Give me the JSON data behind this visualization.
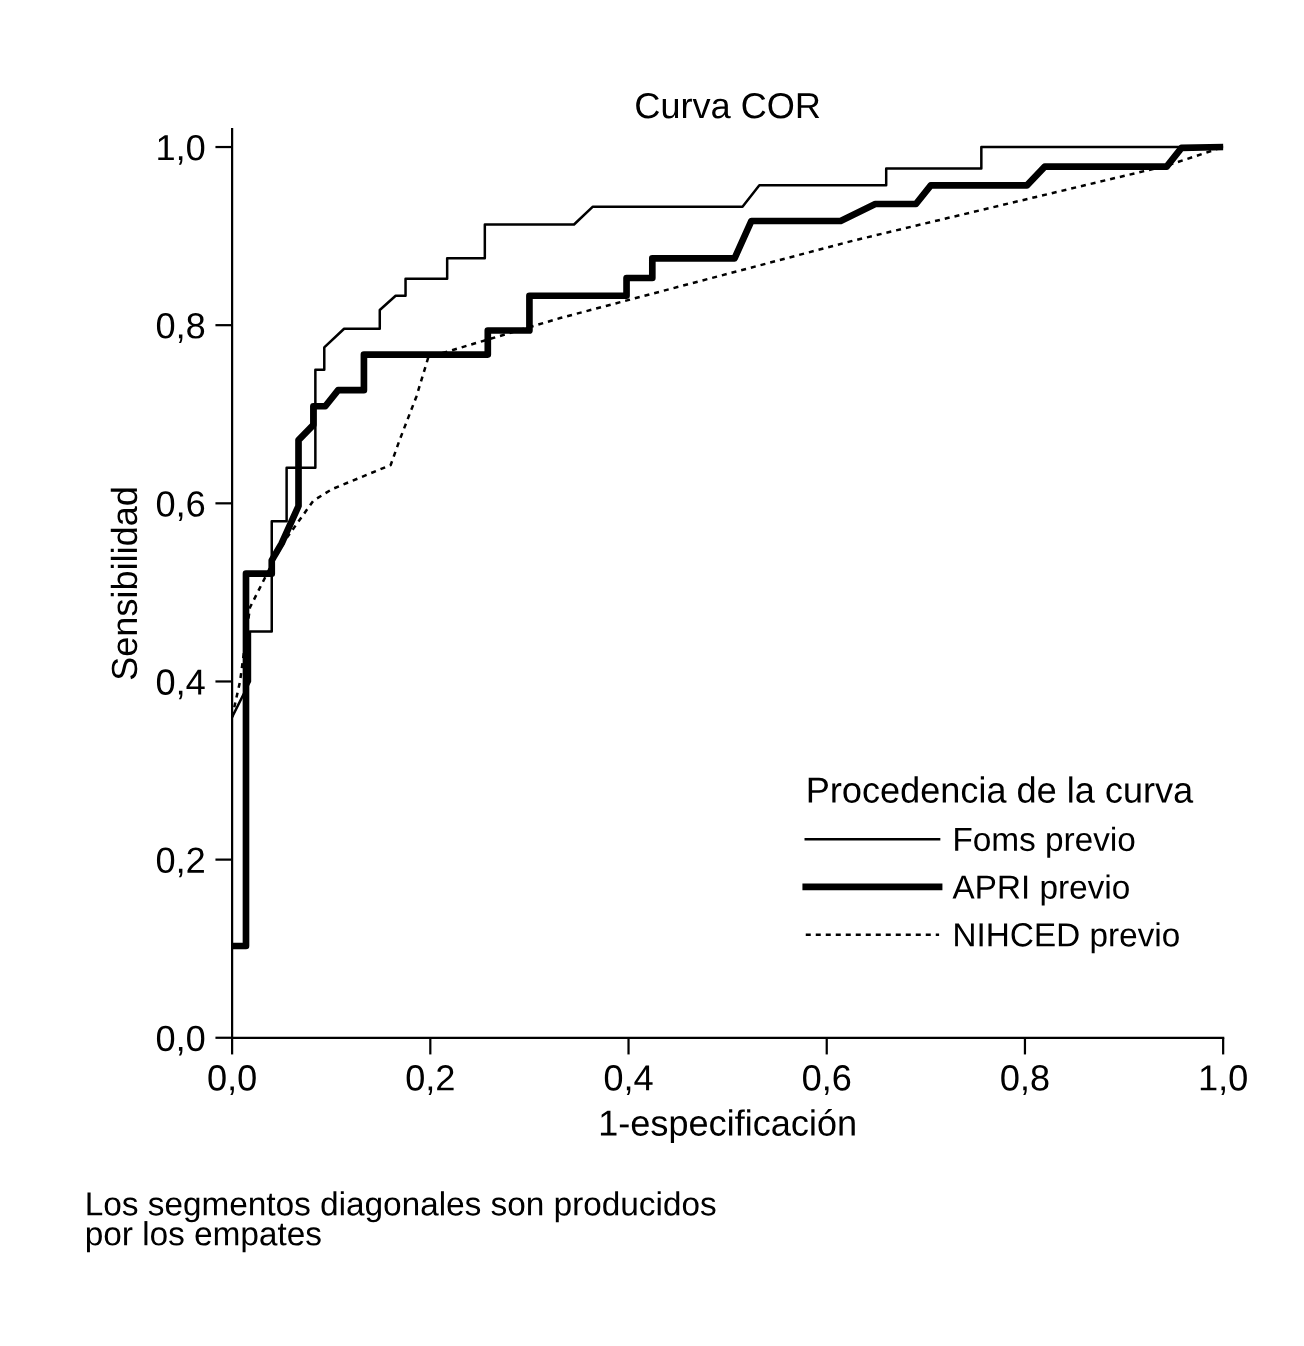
{
  "chart_data": {
    "type": "step",
    "title": "Curva COR",
    "xlabel": "1-especificación",
    "ylabel": "Sensibilidad",
    "legend_title": "Procedencia de la curva",
    "legend": "bottom right",
    "grid": false,
    "marker": "none",
    "xlim": [
      0,
      1.0
    ],
    "ylim": [
      0,
      1.02
    ],
    "xticks": [
      {
        "value": 0,
        "label": "0,0"
      },
      {
        "value": 0.2,
        "label": "0,2"
      },
      {
        "value": 0.4,
        "label": "0,4"
      },
      {
        "value": 0.6,
        "label": "0,6"
      },
      {
        "value": 0.8,
        "label": "0,8"
      },
      {
        "value": 1.0,
        "label": "1,0"
      }
    ],
    "yticks": [
      {
        "value": 0,
        "label": "0,0"
      },
      {
        "value": 0.2,
        "label": "0,2"
      },
      {
        "value": 0.4,
        "label": "0,4"
      },
      {
        "value": 0.6,
        "label": "0,6"
      },
      {
        "value": 0.8,
        "label": "0,8"
      },
      {
        "value": 1.0,
        "label": "1,0"
      }
    ],
    "series": [
      {
        "name": "Foms previo",
        "color": "#000000",
        "line_style": "solid",
        "x": [
          0,
          0.018,
          0.018,
          0.04,
          0.04,
          0.055,
          0.055,
          0.084,
          0.084,
          0.093,
          0.093,
          0.113,
          0.149,
          0.149,
          0.165,
          0.175,
          0.175,
          0.217,
          0.217,
          0.255,
          0.255,
          0.345,
          0.364,
          0.515,
          0.532,
          0.66,
          0.66,
          0.756,
          0.756,
          1.0
        ],
        "values": [
          0.36,
          0.4,
          0.456,
          0.456,
          0.58,
          0.58,
          0.64,
          0.64,
          0.75,
          0.75,
          0.775,
          0.796,
          0.796,
          0.817,
          0.833,
          0.833,
          0.852,
          0.852,
          0.875,
          0.875,
          0.913,
          0.913,
          0.933,
          0.933,
          0.957,
          0.957,
          0.976,
          0.976,
          1.0,
          1.0
        ]
      },
      {
        "name": "APRI previo",
        "color": "#000000",
        "line_style": "solid",
        "x": [
          0,
          0.014,
          0.014,
          0.04,
          0.04,
          0.05,
          0.067,
          0.067,
          0.082,
          0.082,
          0.094,
          0.107,
          0.133,
          0.133,
          0.258,
          0.258,
          0.3,
          0.3,
          0.398,
          0.398,
          0.424,
          0.424,
          0.507,
          0.524,
          0.614,
          0.649,
          0.69,
          0.705,
          0.802,
          0.82,
          0.943,
          0.958,
          1.0
        ],
        "values": [
          0.103,
          0.103,
          0.521,
          0.521,
          0.536,
          0.555,
          0.597,
          0.671,
          0.688,
          0.709,
          0.709,
          0.727,
          0.727,
          0.767,
          0.767,
          0.794,
          0.794,
          0.833,
          0.833,
          0.853,
          0.853,
          0.875,
          0.875,
          0.917,
          0.917,
          0.936,
          0.936,
          0.957,
          0.957,
          0.978,
          0.978,
          0.999,
          1.0
        ]
      },
      {
        "name": "NIHCED previo",
        "color": "#000000",
        "line_style": "dotted",
        "x": [
          0,
          0.008,
          0.018,
          0.042,
          0.055,
          0.082,
          0.101,
          0.16,
          0.169,
          0.186,
          0.198,
          0.331,
          0.627,
          0.943,
          1.0
        ],
        "values": [
          0.36,
          0.4,
          0.483,
          0.536,
          0.561,
          0.603,
          0.616,
          0.643,
          0.671,
          0.72,
          0.764,
          0.808,
          0.895,
          0.979,
          1.0
        ]
      }
    ],
    "annotations": [
      "Los segmentos diagonales son producidos\npor los empates"
    ]
  }
}
